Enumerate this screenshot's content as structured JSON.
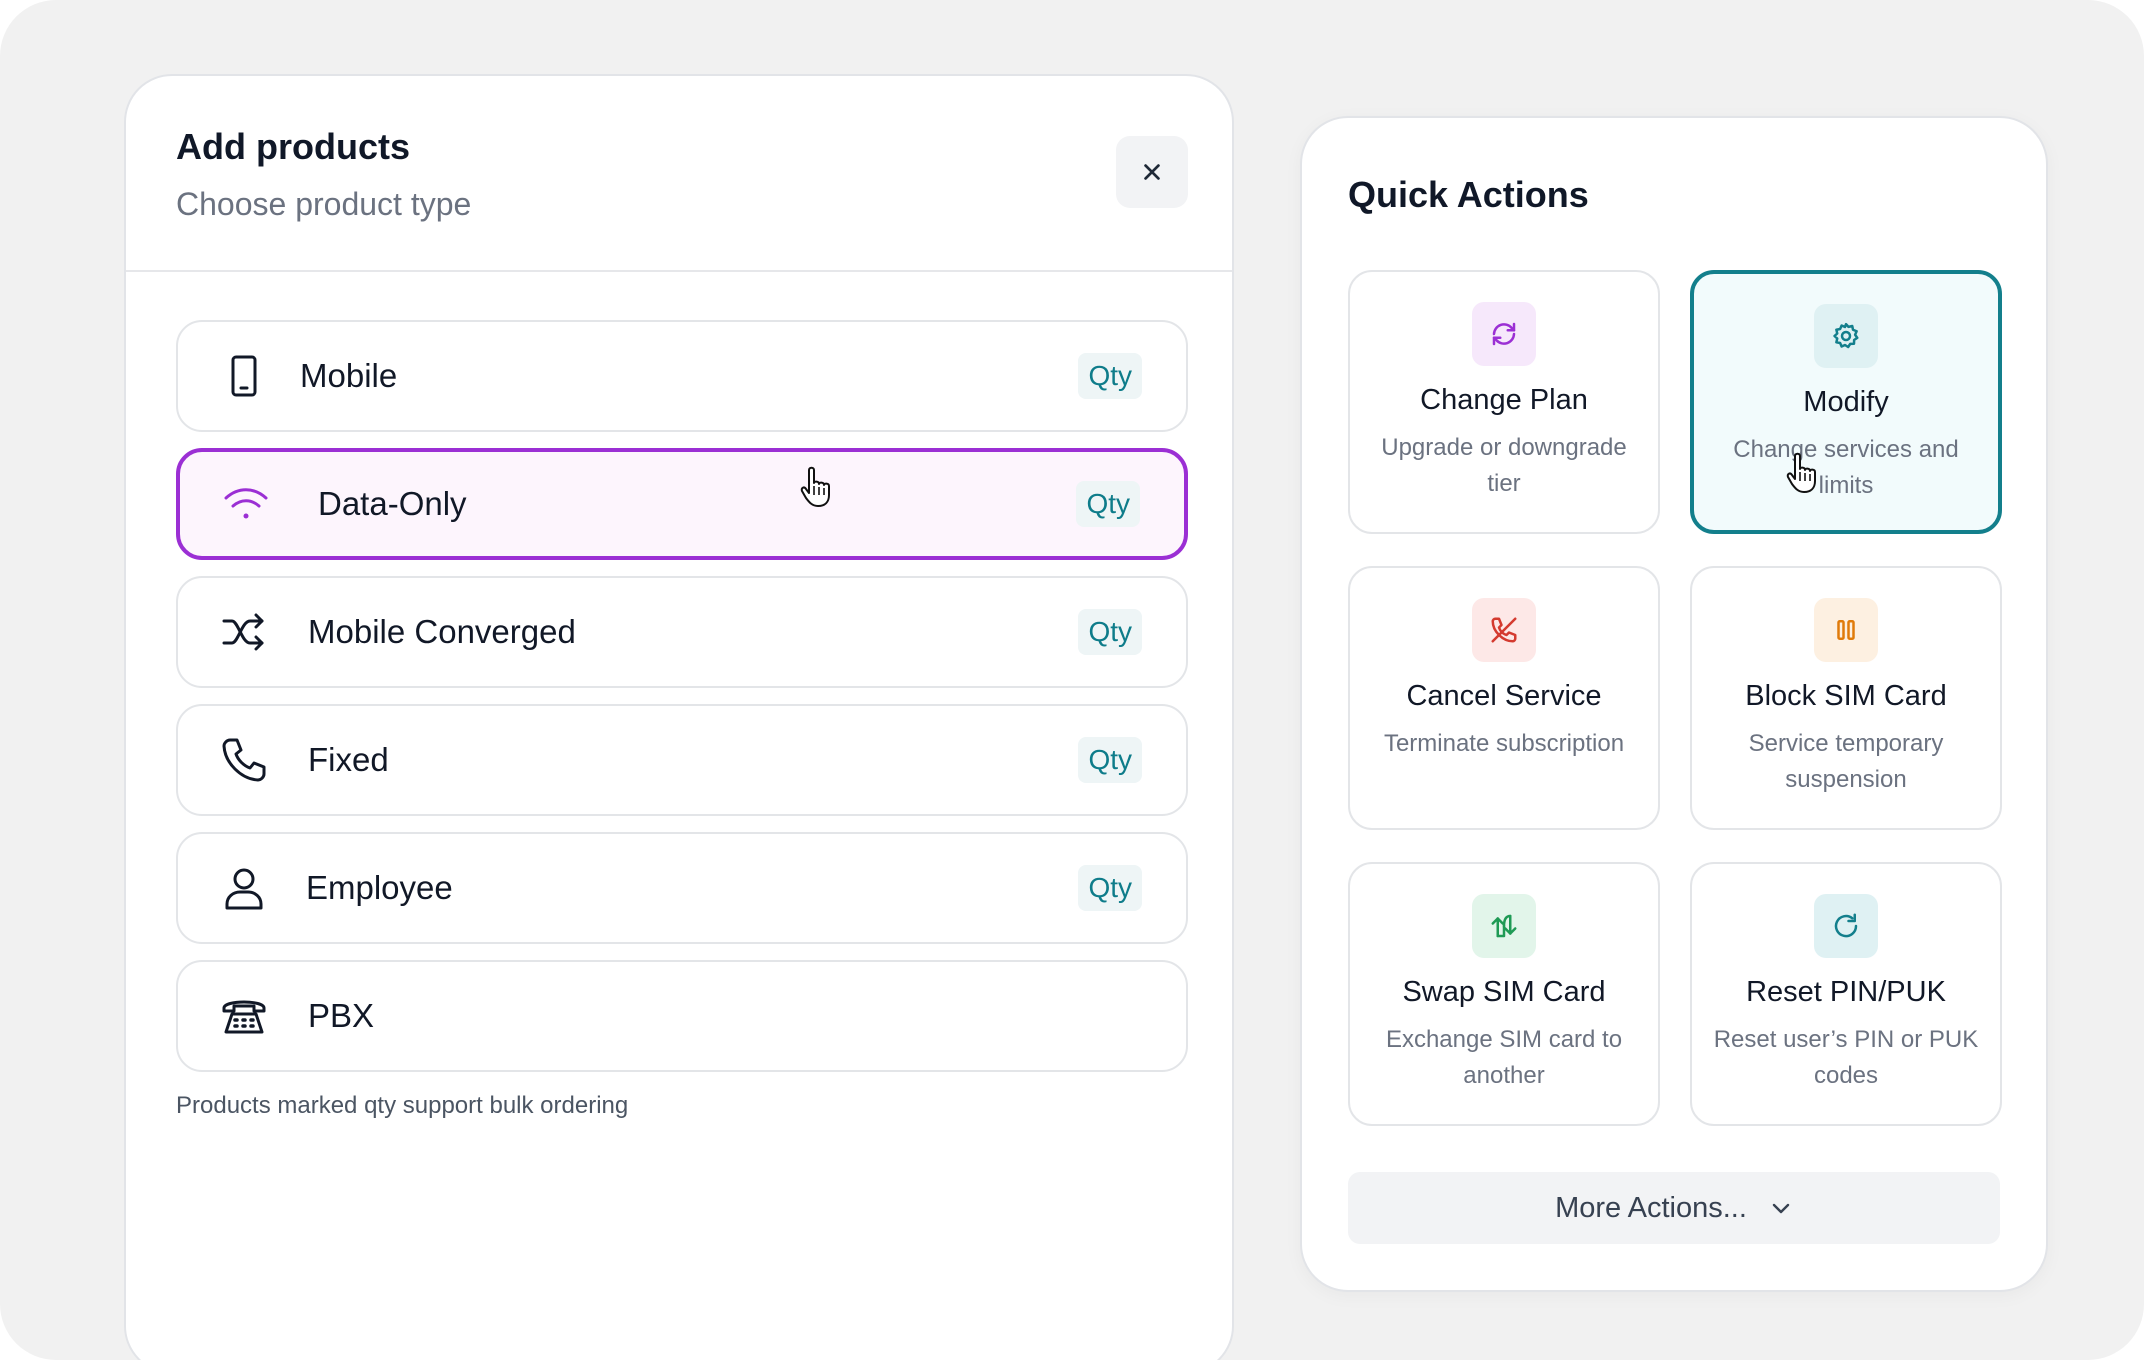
{
  "add_products": {
    "title": "Add products",
    "subtitle": "Choose product type",
    "close_icon": "close-icon",
    "products": [
      {
        "label": "Mobile",
        "icon": "smartphone-icon",
        "qty": "Qty",
        "selected": false
      },
      {
        "label": "Data-Only",
        "icon": "wifi-icon",
        "qty": "Qty",
        "selected": true
      },
      {
        "label": "Mobile Converged",
        "icon": "shuffle-icon",
        "qty": "Qty",
        "selected": false
      },
      {
        "label": "Fixed",
        "icon": "phone-icon",
        "qty": "Qty",
        "selected": false
      },
      {
        "label": "Employee",
        "icon": "user-icon",
        "qty": "Qty",
        "selected": false
      },
      {
        "label": "PBX",
        "icon": "desk-phone-icon",
        "selected": false
      }
    ],
    "footnote": "Products marked qty support bulk ordering",
    "selected_border_color": "#9b2fd4"
  },
  "quick_actions": {
    "title": "Quick Actions",
    "cards": [
      {
        "title": "Change Plan",
        "desc": "Upgrade or downgrade tier",
        "icon": "refresh-icon",
        "icon_color": "#9b2fd4",
        "icon_bg": "#f6e8fb"
      },
      {
        "title": "Modify",
        "desc": "Change services and limits",
        "icon": "gear-icon",
        "icon_color": "#137f8c",
        "icon_bg": "#dff1f3",
        "active": true
      },
      {
        "title": "Cancel Service",
        "desc": "Terminate subscription",
        "icon": "phone-off-icon",
        "icon_color": "#d43a2f",
        "icon_bg": "#fde8e7"
      },
      {
        "title": "Block SIM Card",
        "desc": "Service temporary suspension",
        "icon": "pause-icon",
        "icon_color": "#e07b0a",
        "icon_bg": "#fdf0e1"
      },
      {
        "title": "Swap SIM Card",
        "desc": "Exchange SIM card to another",
        "icon": "swap-icon",
        "icon_color": "#1f9a55",
        "icon_bg": "#e2f5ea"
      },
      {
        "title": "Reset PIN/PUK",
        "desc": "Reset user’s PIN or PUK codes",
        "icon": "reset-icon",
        "icon_color": "#137f8c",
        "icon_bg": "#dff1f3"
      }
    ],
    "more_label": "More Actions...",
    "more_icon": "chevron-down-icon"
  }
}
